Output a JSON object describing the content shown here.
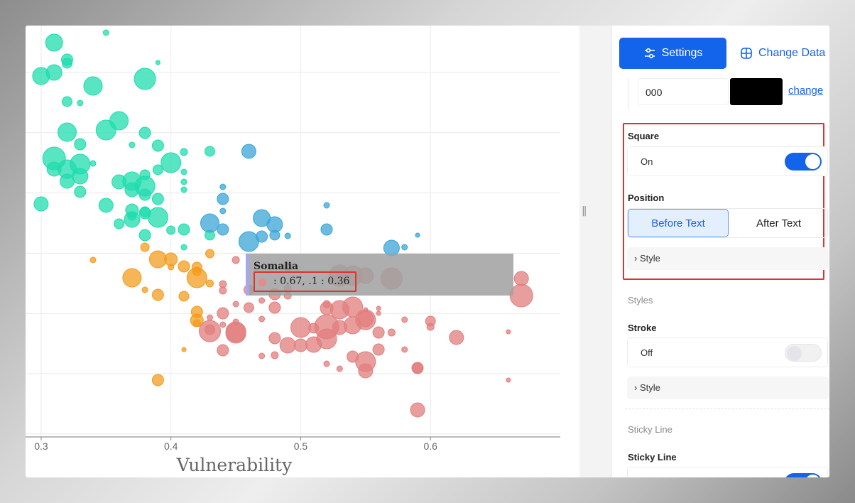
{
  "chart_data": {
    "type": "scatter",
    "xlabel": "Vulnerability",
    "x_ticks": [
      "0.3",
      "0.4",
      "0.5",
      "0.6"
    ],
    "xlim": [
      0.288,
      0.7
    ],
    "y_gridline_count": 8,
    "colors": {
      "green": "#1fdcae",
      "blue": "#3ba6d8",
      "orange": "#f39c1d",
      "red": "#e27d7d"
    },
    "series": [
      {
        "color_key": "green",
        "points": [
          [
            0.35,
            10,
            4
          ],
          [
            0.31,
            24,
            12
          ],
          [
            0.32,
            48,
            8
          ],
          [
            0.32,
            53,
            7
          ],
          [
            0.3,
            71,
            12
          ],
          [
            0.31,
            66,
            11
          ],
          [
            0.34,
            85,
            13
          ],
          [
            0.38,
            75,
            15
          ],
          [
            0.39,
            52,
            3
          ],
          [
            0.32,
            107,
            7
          ],
          [
            0.33,
            109,
            4
          ],
          [
            0.35,
            147,
            14
          ],
          [
            0.36,
            134,
            13
          ],
          [
            0.38,
            151,
            8
          ],
          [
            0.32,
            150,
            13
          ],
          [
            0.33,
            167,
            8
          ],
          [
            0.37,
            168,
            4
          ],
          [
            0.39,
            169,
            8
          ],
          [
            0.41,
            178,
            5
          ],
          [
            0.43,
            177,
            7
          ],
          [
            0.31,
            187,
            16
          ],
          [
            0.32,
            202,
            13
          ],
          [
            0.31,
            202,
            10
          ],
          [
            0.33,
            195,
            14
          ],
          [
            0.33,
            212,
            11
          ],
          [
            0.34,
            194,
            4
          ],
          [
            0.36,
            220,
            10
          ],
          [
            0.37,
            219,
            13
          ],
          [
            0.38,
            226,
            14
          ],
          [
            0.4,
            193,
            14
          ],
          [
            0.39,
            203,
            7
          ],
          [
            0.38,
            210,
            7
          ],
          [
            0.41,
            206,
            4
          ],
          [
            0.37,
            231,
            10
          ],
          [
            0.38,
            238,
            8
          ],
          [
            0.39,
            244,
            8
          ],
          [
            0.35,
            253,
            10
          ],
          [
            0.37,
            260,
            9
          ],
          [
            0.37,
            268,
            6
          ],
          [
            0.38,
            264,
            8
          ],
          [
            0.39,
            270,
            14
          ],
          [
            0.41,
            231,
            4
          ],
          [
            0.41,
            220,
            4
          ],
          [
            0.36,
            279,
            7
          ],
          [
            0.37,
            273,
            11
          ],
          [
            0.38,
            262,
            7
          ],
          [
            0.38,
            295,
            8
          ],
          [
            0.4,
            288,
            6
          ],
          [
            0.41,
            287,
            8
          ],
          [
            0.43,
            295,
            7
          ],
          [
            0.41,
            312,
            4
          ],
          [
            0.33,
            234,
            8
          ],
          [
            0.32,
            219,
            10
          ],
          [
            0.3,
            251,
            10
          ]
        ]
      },
      {
        "color_key": "blue",
        "points": [
          [
            0.46,
            177,
            10
          ],
          [
            0.44,
            244,
            8
          ],
          [
            0.44,
            261,
            4
          ],
          [
            0.44,
            227,
            4
          ],
          [
            0.43,
            278,
            13
          ],
          [
            0.44,
            287,
            8
          ],
          [
            0.47,
            271,
            12
          ],
          [
            0.48,
            280,
            11
          ],
          [
            0.46,
            304,
            14
          ],
          [
            0.47,
            297,
            8
          ],
          [
            0.48,
            295,
            7
          ],
          [
            0.49,
            296,
            4
          ],
          [
            0.52,
            253,
            4
          ],
          [
            0.52,
            287,
            8
          ],
          [
            0.57,
            313,
            11
          ],
          [
            0.58,
            312,
            4
          ],
          [
            0.59,
            295,
            3
          ]
        ]
      },
      {
        "color_key": "orange",
        "points": [
          [
            0.38,
            312,
            6
          ],
          [
            0.39,
            329,
            12
          ],
          [
            0.4,
            329,
            9
          ],
          [
            0.4,
            340,
            4
          ],
          [
            0.41,
            339,
            8
          ],
          [
            0.42,
            340,
            7
          ],
          [
            0.42,
            355,
            14
          ],
          [
            0.42,
            346,
            6
          ],
          [
            0.43,
            321,
            6
          ],
          [
            0.37,
            355,
            13
          ],
          [
            0.38,
            372,
            4
          ],
          [
            0.39,
            379,
            8
          ],
          [
            0.41,
            381,
            7
          ],
          [
            0.42,
            403,
            8
          ],
          [
            0.42,
            415,
            9
          ],
          [
            0.42,
            419,
            5
          ],
          [
            0.41,
            456,
            3
          ],
          [
            0.39,
            499,
            8
          ],
          [
            0.34,
            330,
            4
          ],
          [
            0.43,
            363,
            5
          ]
        ]
      },
      {
        "color_key": "red",
        "points": [
          [
            0.45,
            330,
            5
          ],
          [
            0.49,
            339,
            6
          ],
          [
            0.53,
            352,
            15
          ],
          [
            0.54,
            352,
            14
          ],
          [
            0.55,
            352,
            11
          ],
          [
            0.57,
            356,
            15
          ],
          [
            0.67,
            356,
            10
          ],
          [
            0.67,
            380,
            16
          ],
          [
            0.44,
            364,
            5
          ],
          [
            0.44,
            373,
            5
          ],
          [
            0.46,
            372,
            7
          ],
          [
            0.48,
            378,
            8
          ],
          [
            0.49,
            370,
            5
          ],
          [
            0.49,
            380,
            5
          ],
          [
            0.46,
            397,
            7
          ],
          [
            0.48,
            397,
            8
          ],
          [
            0.45,
            392,
            4
          ],
          [
            0.47,
            387,
            4
          ],
          [
            0.52,
            398,
            9
          ],
          [
            0.52,
            392,
            5
          ],
          [
            0.53,
            400,
            13
          ],
          [
            0.54,
            396,
            14
          ],
          [
            0.55,
            413,
            11
          ],
          [
            0.55,
            400,
            3
          ],
          [
            0.56,
            398,
            3
          ],
          [
            0.56,
            405,
            3
          ],
          [
            0.44,
            405,
            8
          ],
          [
            0.45,
            417,
            4
          ],
          [
            0.47,
            413,
            4
          ],
          [
            0.43,
            428,
            7
          ],
          [
            0.43,
            411,
            4
          ],
          [
            0.44,
            421,
            4
          ],
          [
            0.45,
            433,
            14
          ],
          [
            0.5,
            425,
            14
          ],
          [
            0.51,
            426,
            7
          ],
          [
            0.52,
            424,
            17
          ],
          [
            0.53,
            425,
            10
          ],
          [
            0.54,
            422,
            12
          ],
          [
            0.55,
            414,
            14
          ],
          [
            0.56,
            432,
            8
          ],
          [
            0.57,
            432,
            5
          ],
          [
            0.58,
            414,
            4
          ],
          [
            0.6,
            416,
            7
          ],
          [
            0.6,
            424,
            5
          ],
          [
            0.66,
            431,
            3
          ],
          [
            0.62,
            439,
            10
          ],
          [
            0.43,
            430,
            15
          ],
          [
            0.45,
            431,
            14
          ],
          [
            0.48,
            440,
            8
          ],
          [
            0.52,
            441,
            14
          ],
          [
            0.51,
            449,
            11
          ],
          [
            0.5,
            450,
            9
          ],
          [
            0.49,
            450,
            11
          ],
          [
            0.48,
            464,
            5
          ],
          [
            0.52,
            476,
            4
          ],
          [
            0.54,
            466,
            8
          ],
          [
            0.55,
            473,
            14
          ],
          [
            0.56,
            456,
            8
          ],
          [
            0.58,
            456,
            4
          ],
          [
            0.59,
            482,
            7
          ],
          [
            0.44,
            457,
            8
          ],
          [
            0.47,
            465,
            4
          ],
          [
            0.53,
            483,
            4
          ],
          [
            0.55,
            486,
            10
          ],
          [
            0.59,
            482,
            8
          ],
          [
            0.66,
            499,
            3
          ],
          [
            0.59,
            541,
            10
          ]
        ]
      }
    ]
  },
  "tooltip": {
    "title": "Somalia",
    "line": ": 0.67,  .1 : 0.36"
  },
  "panel": {
    "tab_settings": "Settings",
    "tab_change_data": "Change Data",
    "color_value": "000",
    "swatch_color": "#000000",
    "change_link": "change",
    "square_label": "Square",
    "square_value": "On",
    "position_label": "Position",
    "position_before": "Before Text",
    "position_after": "After Text",
    "style_label": "Style",
    "styles_section": "Styles",
    "stroke_label": "Stroke",
    "stroke_value": "Off",
    "stroke_style_label": "Style",
    "sticky_section": "Sticky Line",
    "sticky_label": "Sticky Line"
  }
}
